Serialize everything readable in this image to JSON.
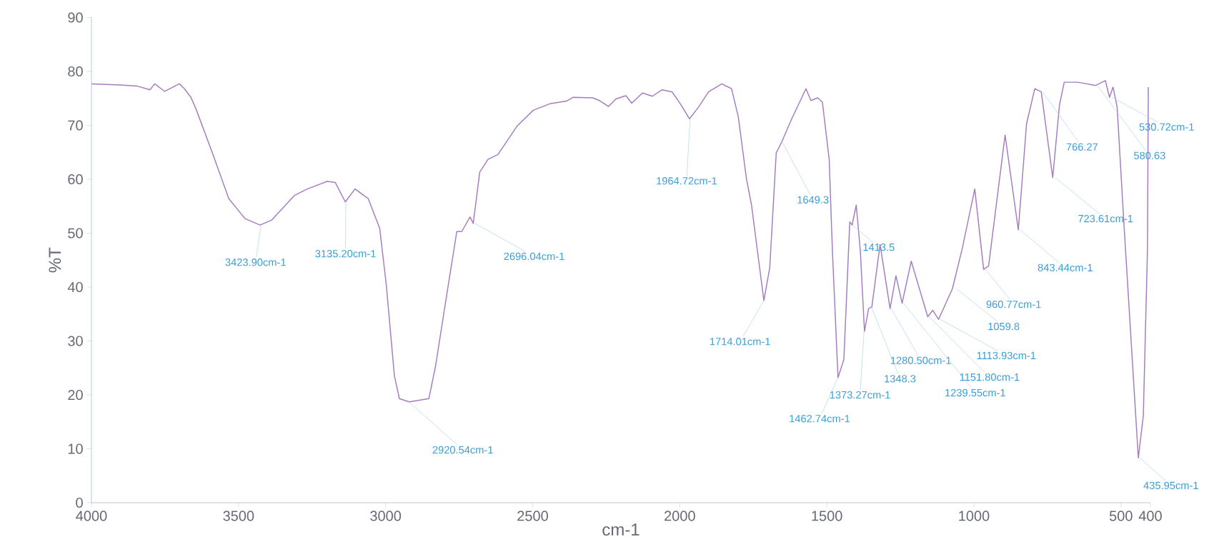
{
  "chart_data": {
    "type": "line",
    "xlabel": "cm-1",
    "ylabel": "%T",
    "color": "#a57cc0",
    "xlim": [
      4000,
      400
    ],
    "ylim": [
      0,
      90
    ],
    "xticks": [
      4000,
      3500,
      3000,
      2500,
      2000,
      1500,
      1000,
      500,
      400
    ],
    "yticks": [
      0,
      10,
      20,
      30,
      40,
      50,
      60,
      70,
      80,
      90
    ],
    "x": [
      4000,
      3902,
      3846,
      3801,
      3785,
      3751,
      3701,
      3684,
      3662,
      3645,
      3589,
      3533,
      3478,
      3427,
      3388,
      3310,
      3266,
      3199,
      3171,
      3137,
      3104,
      3059,
      3020,
      2998,
      2970,
      2953,
      2920,
      2853,
      2830,
      2797,
      2758,
      2741,
      2713,
      2702,
      2680,
      2652,
      2618,
      2554,
      2498,
      2442,
      2385,
      2363,
      2296,
      2273,
      2242,
      2217,
      2183,
      2163,
      2127,
      2093,
      2060,
      2026,
      1998,
      1967,
      1936,
      1902,
      1857,
      1824,
      1801,
      1773,
      1756,
      1714,
      1694,
      1672,
      1655,
      1621,
      1571,
      1554,
      1531,
      1515,
      1492,
      1481,
      1462,
      1442,
      1422,
      1414,
      1400,
      1386,
      1372,
      1358,
      1347,
      1319,
      1285,
      1265,
      1244,
      1213,
      1157,
      1140,
      1120,
      1073,
      1039,
      997,
      967,
      950,
      894,
      849,
      821,
      793,
      771,
      732,
      709,
      693,
      648,
      586,
      553,
      539,
      527,
      513,
      491,
      441,
      424,
      410,
      407
    ],
    "values": [
      77.7,
      77.5,
      77.3,
      76.6,
      77.7,
      76.3,
      77.7,
      76.8,
      75.2,
      73.1,
      64.9,
      56.4,
      52.7,
      51.5,
      52.4,
      57.0,
      58.2,
      59.6,
      59.4,
      55.8,
      58.2,
      56.4,
      50.9,
      40.6,
      23.5,
      19.3,
      18.7,
      19.3,
      25.4,
      36.9,
      50.3,
      50.3,
      53.0,
      51.8,
      61.3,
      63.7,
      64.6,
      69.8,
      72.8,
      74.0,
      74.5,
      75.2,
      75.1,
      74.6,
      73.5,
      74.9,
      75.5,
      74.1,
      76.0,
      75.4,
      76.6,
      76.2,
      74.0,
      71.2,
      73.4,
      76.2,
      77.7,
      76.8,
      71.6,
      60.0,
      55.2,
      37.5,
      43.6,
      64.9,
      66.7,
      71.0,
      76.8,
      74.6,
      75.1,
      74.3,
      63.7,
      46.7,
      23.2,
      26.6,
      52.1,
      51.5,
      55.2,
      46.7,
      31.8,
      36.0,
      36.3,
      47.9,
      36.0,
      42.1,
      37.0,
      44.8,
      34.5,
      35.7,
      34.0,
      39.7,
      47.3,
      58.2,
      43.3,
      43.9,
      68.2,
      50.6,
      70.3,
      76.8,
      76.2,
      60.3,
      73.8,
      78.0,
      78.0,
      77.4,
      78.3,
      75.2,
      77.1,
      73.4,
      52.7,
      8.3,
      16.2,
      46.7,
      77.1
    ],
    "annotations": [
      {
        "text": "3423.90cm-1",
        "x": 3423.9,
        "y": 51.5
      },
      {
        "text": "3135.20cm-1",
        "x": 3135.2,
        "y": 55.8
      },
      {
        "text": "2920.54cm-1",
        "x": 2920.54,
        "y": 18.7
      },
      {
        "text": "2696.04cm-1",
        "x": 2696.04,
        "y": 51.8
      },
      {
        "text": "1964.72cm-1",
        "x": 1964.72,
        "y": 71.2
      },
      {
        "text": "1649.3",
        "x": 1649.3,
        "y": 66.7
      },
      {
        "text": "1714.01cm-1",
        "x": 1714.01,
        "y": 37.5
      },
      {
        "text": "1413.5",
        "x": 1413.5,
        "y": 51.5
      },
      {
        "text": "1462.74cm-1",
        "x": 1462.74,
        "y": 23.2
      },
      {
        "text": "1373.27cm-1",
        "x": 1373.27,
        "y": 31.8
      },
      {
        "text": "1348.3",
        "x": 1348.3,
        "y": 36.3
      },
      {
        "text": "1280.50cm-1",
        "x": 1280.5,
        "y": 36.0
      },
      {
        "text": "1239.55cm-1",
        "x": 1239.55,
        "y": 37.0
      },
      {
        "text": "1151.80cm-1",
        "x": 1151.8,
        "y": 34.5
      },
      {
        "text": "1113.93cm-1",
        "x": 1113.93,
        "y": 34.0
      },
      {
        "text": "1059.8",
        "x": 1059.8,
        "y": 39.7
      },
      {
        "text": "960.77cm-1",
        "x": 960.77,
        "y": 43.3
      },
      {
        "text": "843.44cm-1",
        "x": 843.44,
        "y": 50.6
      },
      {
        "text": "766.27",
        "x": 766.27,
        "y": 76.2
      },
      {
        "text": "723.61cm-1",
        "x": 723.61,
        "y": 60.3
      },
      {
        "text": "580.63",
        "x": 580.63,
        "y": 77.4
      },
      {
        "text": "530.72cm-1",
        "x": 530.72,
        "y": 75.2
      },
      {
        "text": "435.95cm-1",
        "x": 435.95,
        "y": 8.3
      }
    ]
  }
}
